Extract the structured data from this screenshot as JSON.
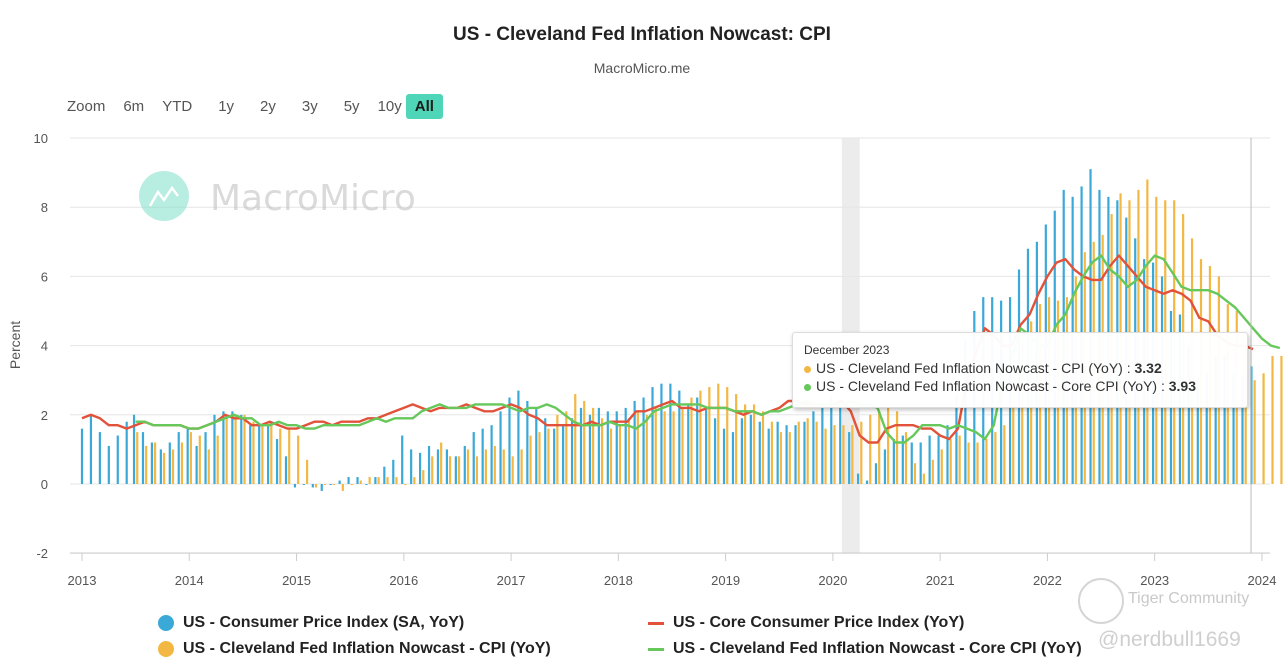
{
  "header": {
    "title": "US - Cleveland Fed Inflation Nowcast: CPI",
    "subtitle": "MacroMicro.me"
  },
  "range_selector": {
    "label": "Zoom",
    "buttons": [
      "6m",
      "YTD",
      "1y",
      "2y",
      "3y",
      "5y",
      "10y",
      "All"
    ],
    "active": "All"
  },
  "watermark": {
    "brand": "MacroMicro",
    "community": "Tiger Community",
    "user": "@nerdbull1669"
  },
  "tooltip": {
    "date": "December 2023",
    "rows": [
      {
        "label": "US - Cleveland Fed Inflation Nowcast - CPI (YoY) : ",
        "value": "3.32",
        "color": "#f2b843"
      },
      {
        "label": "US - Cleveland Fed Inflation Nowcast - Core CPI (YoY) : ",
        "value": "3.93",
        "color": "#66c85a"
      }
    ]
  },
  "colors": {
    "cpi": "#3aa9d8",
    "nowcast_cpi": "#f2b843",
    "core_cpi": "#e2523a",
    "nowcast_core": "#66c85a",
    "recession": "#ececec"
  },
  "chart_data": {
    "type": "bar",
    "title": "US - Cleveland Fed Inflation Nowcast: CPI",
    "subtitle": "MacroMicro.me",
    "xlabel": "",
    "ylabel": "Percent",
    "ylim": [
      -2,
      10
    ],
    "yticks": [
      -2,
      0,
      2,
      4,
      6,
      8,
      10
    ],
    "xticks": [
      "2013",
      "2014",
      "2015",
      "2016",
      "2017",
      "2018",
      "2019",
      "2020",
      "2021",
      "2022",
      "2023",
      "2024"
    ],
    "x_range": [
      "2013-01",
      "2024-03"
    ],
    "grid": true,
    "legend_position": "bottom",
    "recession_band": [
      "2020-02",
      "2020-04"
    ],
    "crosshair": "2023-12",
    "start_month": "2013-01",
    "cpi_start_month": "2013-01",
    "cpi_step_months_until_2013_06": 1,
    "series": [
      {
        "name": "US - Consumer Price Index (SA, YoY)",
        "kind": "bar",
        "start": "2013-01",
        "values": [
          1.6,
          2.0,
          1.5,
          1.1,
          1.4,
          1.8,
          2.0,
          1.5,
          1.2,
          1.0,
          1.2,
          1.5,
          1.6,
          1.1,
          1.5,
          2.0,
          2.1,
          2.1,
          2.0,
          1.7,
          1.7,
          1.7,
          1.3,
          0.8,
          -0.1,
          0.0,
          -0.1,
          -0.2,
          0.0,
          0.1,
          0.2,
          0.2,
          0.0,
          0.2,
          0.5,
          0.7,
          1.4,
          1.0,
          0.9,
          1.1,
          1.0,
          1.0,
          0.8,
          1.1,
          1.5,
          1.6,
          1.7,
          2.1,
          2.5,
          2.7,
          2.4,
          2.2,
          1.9,
          1.6,
          1.7,
          1.9,
          2.2,
          2.0,
          2.2,
          2.1,
          2.1,
          2.2,
          2.4,
          2.5,
          2.8,
          2.9,
          2.9,
          2.7,
          2.3,
          2.5,
          2.2,
          1.9,
          1.6,
          1.5,
          1.9,
          2.0,
          1.8,
          1.6,
          1.8,
          1.7,
          1.7,
          1.8,
          2.1,
          2.3,
          2.5,
          2.3,
          1.5,
          0.3,
          0.1,
          0.6,
          1.0,
          1.3,
          1.4,
          1.2,
          1.2,
          1.4,
          1.4,
          1.7,
          2.6,
          4.2,
          5.0,
          5.4,
          5.4,
          5.3,
          5.4,
          6.2,
          6.8,
          7.0,
          7.5,
          7.9,
          8.5,
          8.3,
          8.6,
          9.1,
          8.5,
          8.3,
          8.2,
          7.7,
          7.1,
          6.5,
          6.4,
          6.0,
          5.0,
          4.9,
          4.0,
          3.0,
          3.2,
          3.7,
          3.7,
          3.2,
          3.1,
          3.4
        ]
      },
      {
        "name": "US - Cleveland Fed Inflation Nowcast - CPI (YoY)",
        "kind": "bar",
        "start": "2013-07",
        "values": [
          1.5,
          1.1,
          1.2,
          0.9,
          1.0,
          1.2,
          1.5,
          1.4,
          1.0,
          1.4,
          2.0,
          2.0,
          2.0,
          1.8,
          1.7,
          1.7,
          1.6,
          1.6,
          1.4,
          0.7,
          -0.1,
          0.0,
          0.0,
          -0.2,
          0.0,
          0.1,
          0.2,
          0.2,
          0.2,
          0.2,
          0.0,
          0.2,
          0.4,
          0.8,
          1.2,
          0.8,
          0.8,
          1.0,
          0.8,
          1.0,
          1.1,
          1.0,
          0.8,
          1.0,
          1.4,
          1.5,
          1.6,
          2.0,
          2.1,
          2.6,
          2.4,
          2.2,
          1.9,
          1.6,
          1.7,
          1.9,
          2.1,
          2.0,
          2.2,
          2.1,
          2.1,
          2.2,
          2.5,
          2.7,
          2.8,
          2.9,
          2.8,
          2.6,
          2.3,
          2.3,
          2.1,
          1.8,
          1.5,
          1.5,
          1.8,
          1.9,
          1.8,
          1.6,
          1.7,
          1.7,
          1.7,
          1.8,
          2.0,
          2.1,
          2.3,
          2.1,
          1.5,
          0.6,
          0.3,
          0.7,
          1.0,
          1.3,
          1.4,
          1.2,
          1.2,
          1.3,
          1.5,
          1.7,
          2.6,
          4.2,
          4.7,
          5.2,
          5.4,
          5.3,
          5.4,
          6.0,
          6.7,
          7.0,
          7.2,
          7.8,
          8.4,
          8.2,
          8.5,
          8.8,
          8.3,
          8.2,
          8.2,
          7.8,
          7.1,
          6.5,
          6.3,
          6.0,
          5.2,
          5.0,
          4.1,
          3.0,
          3.2,
          3.7,
          3.7,
          3.3,
          3.2,
          3.32
        ]
      },
      {
        "name": "US - Core Consumer Price Index (YoY)",
        "kind": "line",
        "start": "2013-01",
        "values": [
          1.9,
          2.0,
          1.9,
          1.7,
          1.7,
          1.6,
          1.7,
          1.8,
          1.7,
          1.7,
          1.7,
          1.7,
          1.6,
          1.6,
          1.7,
          1.8,
          2.0,
          1.9,
          1.9,
          1.7,
          1.7,
          1.8,
          1.7,
          1.6,
          1.6,
          1.7,
          1.8,
          1.8,
          1.7,
          1.8,
          1.8,
          1.8,
          1.9,
          1.9,
          2.0,
          2.1,
          2.2,
          2.3,
          2.2,
          2.1,
          2.2,
          2.2,
          2.2,
          2.3,
          2.2,
          2.1,
          2.1,
          2.2,
          2.3,
          2.2,
          2.0,
          1.9,
          1.7,
          1.7,
          1.7,
          1.7,
          1.7,
          1.8,
          1.7,
          1.8,
          1.8,
          1.8,
          2.1,
          2.1,
          2.2,
          2.3,
          2.4,
          2.2,
          2.2,
          2.1,
          2.2,
          2.2,
          2.2,
          2.1,
          2.0,
          2.1,
          2.0,
          2.1,
          2.2,
          2.4,
          2.4,
          2.3,
          2.3,
          2.3,
          2.3,
          2.4,
          2.1,
          1.4,
          1.2,
          1.2,
          1.6,
          1.7,
          1.7,
          1.7,
          1.6,
          1.6,
          1.4,
          1.3,
          1.6,
          3.0,
          3.8,
          4.5,
          4.3,
          4.0,
          4.0,
          4.6,
          4.9,
          5.5,
          6.0,
          6.4,
          6.5,
          6.2,
          6.0,
          5.9,
          5.9,
          6.3,
          6.6,
          6.3,
          6.0,
          5.7,
          5.6,
          5.5,
          5.6,
          5.5,
          5.3,
          4.8,
          4.7,
          4.3,
          4.1,
          4.0,
          4.0,
          3.9
        ]
      },
      {
        "name": "US - Cleveland Fed Inflation Nowcast - Core CPI (YoY)",
        "kind": "line",
        "start": "2013-07",
        "values": [
          1.8,
          1.8,
          1.7,
          1.7,
          1.7,
          1.7,
          1.6,
          1.6,
          1.7,
          1.8,
          1.9,
          2.0,
          1.9,
          1.9,
          1.7,
          1.7,
          1.8,
          1.7,
          1.7,
          1.6,
          1.6,
          1.7,
          1.7,
          1.7,
          1.7,
          1.7,
          1.8,
          1.9,
          1.8,
          1.9,
          1.9,
          1.9,
          2.1,
          2.2,
          2.3,
          2.2,
          2.2,
          2.2,
          2.3,
          2.3,
          2.3,
          2.3,
          2.2,
          2.1,
          2.2,
          2.2,
          2.3,
          2.2,
          2.0,
          1.8,
          1.7,
          1.7,
          1.7,
          1.8,
          1.7,
          1.7,
          1.6,
          1.8,
          2.1,
          2.2,
          2.3,
          2.3,
          2.3,
          2.3,
          2.2,
          2.2,
          2.2,
          2.1,
          2.1,
          2.1,
          2.0,
          2.1,
          2.1,
          2.2,
          2.3,
          2.4,
          2.3,
          2.3,
          2.3,
          2.3,
          2.4,
          2.3,
          2.3,
          2.2,
          1.5,
          1.2,
          1.2,
          1.4,
          1.7,
          1.7,
          1.7,
          1.6,
          1.7,
          1.6,
          1.5,
          1.3,
          1.7,
          3.0,
          3.6,
          4.5,
          4.3,
          4.0,
          4.0,
          4.6,
          4.9,
          5.5,
          6.0,
          6.4,
          6.6,
          6.2,
          6.0,
          5.7,
          5.9,
          6.3,
          6.6,
          6.5,
          6.1,
          5.7,
          5.6,
          5.6,
          5.6,
          5.5,
          5.3,
          5.1,
          4.8,
          4.5,
          4.2,
          4.0,
          3.93
        ]
      }
    ]
  }
}
